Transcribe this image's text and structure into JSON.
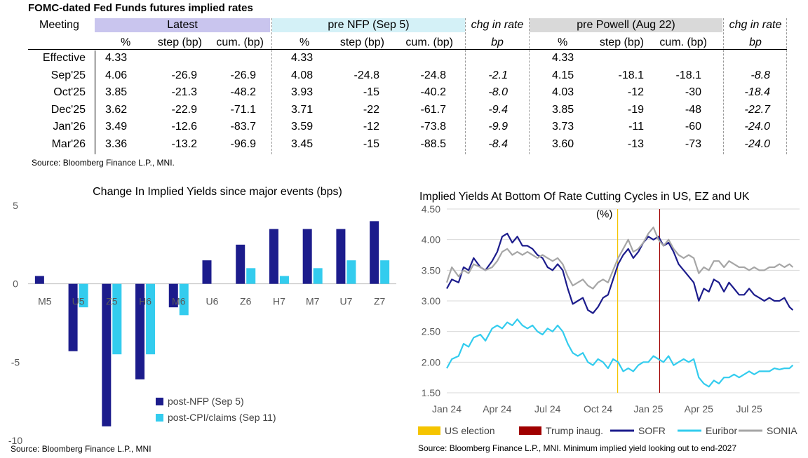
{
  "table": {
    "title": "FOMC-dated Fed Funds futures implied rates",
    "groups": {
      "meeting": "Meeting",
      "latest": "Latest",
      "prenfp": "pre NFP (Sep 5)",
      "chg1": "chg in rate",
      "prepowell": "pre Powell (Aug 22)",
      "chg2": "chg in rate"
    },
    "subheaders": {
      "pct": "%",
      "step": "step (bp)",
      "cum": "cum. (bp)",
      "bp": "bp"
    },
    "rows": [
      {
        "meeting": "Effective",
        "l_pct": "4.33",
        "l_step": "",
        "l_cum": "",
        "n_pct": "4.33",
        "n_step": "",
        "n_cum": "",
        "chg1": "",
        "p_pct": "4.33",
        "p_step": "",
        "p_cum": "",
        "chg2": ""
      },
      {
        "meeting": "Sep'25",
        "l_pct": "4.06",
        "l_step": "-26.9",
        "l_cum": "-26.9",
        "n_pct": "4.08",
        "n_step": "-24.8",
        "n_cum": "-24.8",
        "chg1": "-2.1",
        "p_pct": "4.15",
        "p_step": "-18.1",
        "p_cum": "-18.1",
        "chg2": "-8.8"
      },
      {
        "meeting": "Oct'25",
        "l_pct": "3.85",
        "l_step": "-21.3",
        "l_cum": "-48.2",
        "n_pct": "3.93",
        "n_step": "-15",
        "n_cum": "-40.2",
        "chg1": "-8.0",
        "p_pct": "4.03",
        "p_step": "-12",
        "p_cum": "-30",
        "chg2": "-18.4"
      },
      {
        "meeting": "Dec'25",
        "l_pct": "3.62",
        "l_step": "-22.9",
        "l_cum": "-71.1",
        "n_pct": "3.71",
        "n_step": "-22",
        "n_cum": "-61.7",
        "chg1": "-9.4",
        "p_pct": "3.85",
        "p_step": "-19",
        "p_cum": "-48",
        "chg2": "-22.7"
      },
      {
        "meeting": "Jan'26",
        "l_pct": "3.49",
        "l_step": "-12.6",
        "l_cum": "-83.7",
        "n_pct": "3.59",
        "n_step": "-12",
        "n_cum": "-73.8",
        "chg1": "-9.9",
        "p_pct": "3.73",
        "p_step": "-11",
        "p_cum": "-60",
        "chg2": "-24.0"
      },
      {
        "meeting": "Mar'26",
        "l_pct": "3.36",
        "l_step": "-13.2",
        "l_cum": "-96.9",
        "n_pct": "3.45",
        "n_step": "-15",
        "n_cum": "-88.5",
        "chg1": "-8.4",
        "p_pct": "3.60",
        "p_step": "-13",
        "p_cum": "-73",
        "chg2": "-24.0"
      }
    ],
    "source": "Source: Bloomberg Finance L.P., MNI.",
    "colors": {
      "latest_band": "#c9c5ee",
      "prenfp_band": "#d4f1f7",
      "prepowell_band": "#d9d9d9"
    }
  },
  "chart_data": [
    {
      "type": "bar",
      "title": "Change In Implied Yields since major events (bps)",
      "categories": [
        "M5",
        "U5",
        "Z5",
        "H6",
        "M6",
        "U6",
        "Z6",
        "H7",
        "M7",
        "U7",
        "Z7"
      ],
      "series": [
        {
          "name": "post-NFP (Sep 5)",
          "color": "#1c1c8c",
          "values": [
            0.5,
            -4.3,
            -9.1,
            -6.1,
            -1.5,
            1.5,
            2.5,
            3.5,
            3.5,
            3.5,
            4.0
          ]
        },
        {
          "name": "post-CPI/claims (Sep 11)",
          "color": "#33ccee",
          "values": [
            0,
            -1.5,
            -4.5,
            -4.5,
            -2.0,
            0,
            1.0,
            0.5,
            1.0,
            1.5,
            1.5
          ]
        }
      ],
      "ylim": [
        -10,
        5
      ],
      "yticks": [
        "5",
        "0",
        "-5",
        "-10"
      ],
      "legend": "bottom-right",
      "source": "Source: Bloomberg Finance L.P., MNI"
    },
    {
      "type": "line",
      "title": "Implied Yields At Bottom Of Rate Cutting Cycles in US, EZ and UK",
      "subtitle": "(%)",
      "xticks": [
        "Jan 24",
        "Apr 24",
        "Jul 24",
        "Oct 24",
        "Jan 25",
        "Apr 25",
        "Jul 25"
      ],
      "yticks": [
        "4.50",
        "4.00",
        "3.50",
        "3.00",
        "2.50",
        "2.00",
        "1.50"
      ],
      "ylim": [
        1.5,
        4.5
      ],
      "xlim_months": [
        0,
        21
      ],
      "events": [
        {
          "name": "US election",
          "month": 10.17,
          "color": "#f5c400"
        },
        {
          "name": "Trump inaug.",
          "month": 12.67,
          "color": "#a00000"
        }
      ],
      "series": [
        {
          "name": "SOFR",
          "color": "#1c1c8c",
          "points": [
            [
              0,
              3.2
            ],
            [
              0.3,
              3.35
            ],
            [
              0.7,
              3.3
            ],
            [
              1,
              3.55
            ],
            [
              1.3,
              3.5
            ],
            [
              1.6,
              3.7
            ],
            [
              2,
              3.55
            ],
            [
              2.3,
              3.5
            ],
            [
              2.7,
              3.65
            ],
            [
              3,
              3.8
            ],
            [
              3.3,
              4.05
            ],
            [
              3.6,
              4.1
            ],
            [
              3.9,
              3.95
            ],
            [
              4.2,
              4.05
            ],
            [
              4.5,
              3.9
            ],
            [
              4.8,
              3.9
            ],
            [
              5.1,
              3.85
            ],
            [
              5.4,
              3.75
            ],
            [
              5.7,
              3.7
            ],
            [
              6,
              3.55
            ],
            [
              6.3,
              3.5
            ],
            [
              6.6,
              3.6
            ],
            [
              6.9,
              3.5
            ],
            [
              7.2,
              3.2
            ],
            [
              7.5,
              2.95
            ],
            [
              7.8,
              3.0
            ],
            [
              8.1,
              3.05
            ],
            [
              8.4,
              2.85
            ],
            [
              8.7,
              2.8
            ],
            [
              9,
              2.9
            ],
            [
              9.3,
              3.05
            ],
            [
              9.6,
              3.1
            ],
            [
              9.9,
              3.35
            ],
            [
              10.2,
              3.6
            ],
            [
              10.5,
              3.75
            ],
            [
              10.8,
              3.85
            ],
            [
              11.1,
              3.7
            ],
            [
              11.4,
              3.8
            ],
            [
              11.7,
              3.95
            ],
            [
              12,
              4.05
            ],
            [
              12.3,
              4.0
            ],
            [
              12.6,
              4.05
            ],
            [
              12.9,
              3.9
            ],
            [
              13.2,
              3.95
            ],
            [
              13.5,
              3.8
            ],
            [
              13.8,
              3.6
            ],
            [
              14.1,
              3.5
            ],
            [
              14.4,
              3.4
            ],
            [
              14.7,
              3.3
            ],
            [
              15,
              3.0
            ],
            [
              15.3,
              3.2
            ],
            [
              15.6,
              3.15
            ],
            [
              15.9,
              3.35
            ],
            [
              16.2,
              3.3
            ],
            [
              16.5,
              3.15
            ],
            [
              16.8,
              3.3
            ],
            [
              17.1,
              3.2
            ],
            [
              17.4,
              3.1
            ],
            [
              17.7,
              3.1
            ],
            [
              18,
              3.2
            ],
            [
              18.3,
              3.1
            ],
            [
              18.6,
              3.05
            ],
            [
              18.9,
              3.0
            ],
            [
              19.2,
              3.05
            ],
            [
              19.5,
              3.0
            ],
            [
              19.8,
              3.0
            ],
            [
              20.1,
              3.05
            ],
            [
              20.4,
              2.9
            ],
            [
              20.6,
              2.85
            ]
          ]
        },
        {
          "name": "Euribor",
          "color": "#33ccee",
          "points": [
            [
              0,
              1.9
            ],
            [
              0.3,
              2.05
            ],
            [
              0.7,
              2.1
            ],
            [
              1,
              2.3
            ],
            [
              1.3,
              2.25
            ],
            [
              1.6,
              2.4
            ],
            [
              2,
              2.45
            ],
            [
              2.3,
              2.35
            ],
            [
              2.7,
              2.55
            ],
            [
              3,
              2.6
            ],
            [
              3.3,
              2.55
            ],
            [
              3.6,
              2.65
            ],
            [
              3.9,
              2.6
            ],
            [
              4.2,
              2.7
            ],
            [
              4.5,
              2.6
            ],
            [
              4.8,
              2.55
            ],
            [
              5.1,
              2.6
            ],
            [
              5.4,
              2.5
            ],
            [
              5.7,
              2.45
            ],
            [
              6,
              2.55
            ],
            [
              6.3,
              2.5
            ],
            [
              6.6,
              2.6
            ],
            [
              6.9,
              2.5
            ],
            [
              7.2,
              2.3
            ],
            [
              7.5,
              2.15
            ],
            [
              7.8,
              2.1
            ],
            [
              8.1,
              2.15
            ],
            [
              8.4,
              2.0
            ],
            [
              8.7,
              1.95
            ],
            [
              9,
              2.05
            ],
            [
              9.3,
              2.0
            ],
            [
              9.6,
              1.9
            ],
            [
              9.9,
              2.05
            ],
            [
              10.2,
              2.0
            ],
            [
              10.5,
              1.85
            ],
            [
              10.8,
              1.9
            ],
            [
              11.1,
              1.85
            ],
            [
              11.4,
              1.95
            ],
            [
              11.7,
              2.0
            ],
            [
              12,
              2.0
            ],
            [
              12.3,
              2.1
            ],
            [
              12.6,
              2.05
            ],
            [
              12.9,
              2.0
            ],
            [
              13.2,
              2.1
            ],
            [
              13.5,
              1.95
            ],
            [
              13.8,
              2.0
            ],
            [
              14.1,
              2.05
            ],
            [
              14.4,
              2.0
            ],
            [
              14.7,
              2.05
            ],
            [
              15,
              1.75
            ],
            [
              15.3,
              1.65
            ],
            [
              15.6,
              1.6
            ],
            [
              15.9,
              1.7
            ],
            [
              16.2,
              1.65
            ],
            [
              16.5,
              1.75
            ],
            [
              16.8,
              1.75
            ],
            [
              17.1,
              1.8
            ],
            [
              17.4,
              1.75
            ],
            [
              17.7,
              1.8
            ],
            [
              18,
              1.85
            ],
            [
              18.3,
              1.8
            ],
            [
              18.6,
              1.85
            ],
            [
              18.9,
              1.85
            ],
            [
              19.2,
              1.85
            ],
            [
              19.5,
              1.9
            ],
            [
              19.8,
              1.88
            ],
            [
              20.1,
              1.9
            ],
            [
              20.4,
              1.9
            ],
            [
              20.6,
              1.95
            ]
          ]
        },
        {
          "name": "SONIA",
          "color": "#a6a6a6",
          "points": [
            [
              0,
              3.3
            ],
            [
              0.3,
              3.55
            ],
            [
              0.7,
              3.4
            ],
            [
              1,
              3.5
            ],
            [
              1.3,
              3.45
            ],
            [
              1.6,
              3.6
            ],
            [
              2,
              3.55
            ],
            [
              2.3,
              3.5
            ],
            [
              2.7,
              3.55
            ],
            [
              3,
              3.65
            ],
            [
              3.3,
              3.8
            ],
            [
              3.6,
              3.85
            ],
            [
              3.9,
              3.75
            ],
            [
              4.2,
              3.8
            ],
            [
              4.5,
              3.75
            ],
            [
              4.8,
              3.8
            ],
            [
              5.1,
              3.75
            ],
            [
              5.4,
              3.7
            ],
            [
              5.7,
              3.75
            ],
            [
              6,
              3.7
            ],
            [
              6.3,
              3.65
            ],
            [
              6.6,
              3.7
            ],
            [
              6.9,
              3.6
            ],
            [
              7.2,
              3.4
            ],
            [
              7.5,
              3.25
            ],
            [
              7.8,
              3.3
            ],
            [
              8.1,
              3.35
            ],
            [
              8.4,
              3.25
            ],
            [
              8.7,
              3.2
            ],
            [
              9,
              3.3
            ],
            [
              9.3,
              3.35
            ],
            [
              9.6,
              3.3
            ],
            [
              9.9,
              3.5
            ],
            [
              10.2,
              3.7
            ],
            [
              10.5,
              3.85
            ],
            [
              10.8,
              4.0
            ],
            [
              11.1,
              3.8
            ],
            [
              11.4,
              3.85
            ],
            [
              11.7,
              3.95
            ],
            [
              12,
              4.1
            ],
            [
              12.3,
              4.2
            ],
            [
              12.6,
              4.0
            ],
            [
              12.9,
              3.9
            ],
            [
              13.2,
              4.0
            ],
            [
              13.5,
              3.85
            ],
            [
              13.8,
              3.75
            ],
            [
              14.1,
              3.7
            ],
            [
              14.4,
              3.75
            ],
            [
              14.7,
              3.7
            ],
            [
              15,
              3.45
            ],
            [
              15.3,
              3.55
            ],
            [
              15.6,
              3.5
            ],
            [
              15.9,
              3.65
            ],
            [
              16.2,
              3.65
            ],
            [
              16.5,
              3.55
            ],
            [
              16.8,
              3.65
            ],
            [
              17.1,
              3.6
            ],
            [
              17.4,
              3.55
            ],
            [
              17.7,
              3.55
            ],
            [
              18,
              3.5
            ],
            [
              18.3,
              3.55
            ],
            [
              18.6,
              3.5
            ],
            [
              18.9,
              3.5
            ],
            [
              19.2,
              3.55
            ],
            [
              19.5,
              3.55
            ],
            [
              19.8,
              3.6
            ],
            [
              20.1,
              3.55
            ],
            [
              20.4,
              3.6
            ],
            [
              20.6,
              3.55
            ]
          ]
        }
      ],
      "legend": "bottom",
      "source": "Source: Bloomberg Finance L.P., MNI. Minimum implied yield looking out to end-2027"
    }
  ]
}
